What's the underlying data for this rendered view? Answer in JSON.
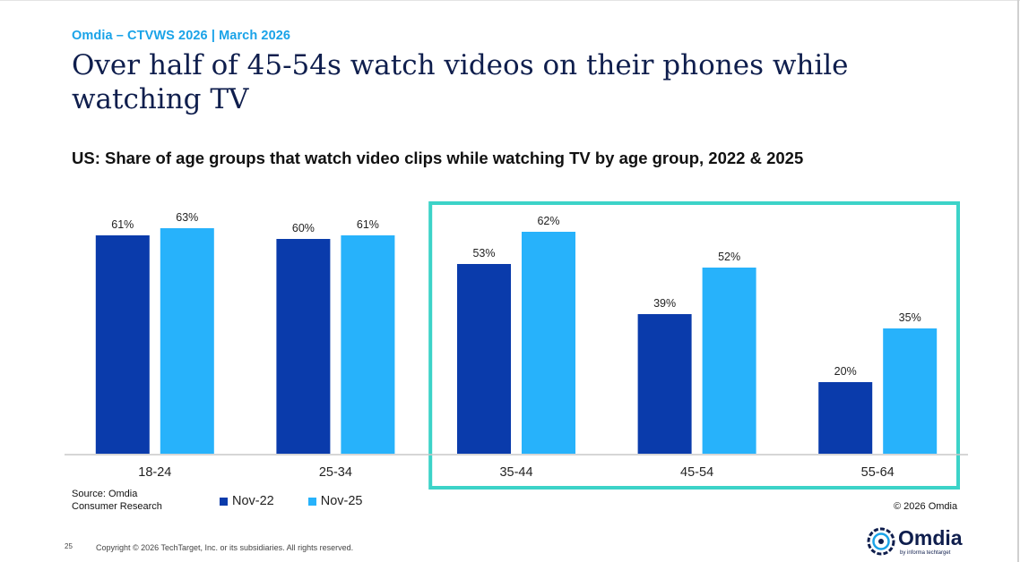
{
  "header": {
    "kicker": "Omdia – CTVWS 2026 | March 2026",
    "title": "Over half of 45-54s watch videos on their phones while watching TV"
  },
  "chart_data": {
    "type": "bar",
    "title": "US: Share of age groups that watch video clips while watching TV by age group, 2022 & 2025",
    "xlabel": "",
    "ylabel": "",
    "categories": [
      "18-24",
      "25-34",
      "35-44",
      "45-54",
      "55-64"
    ],
    "series": [
      {
        "name": "Nov-22",
        "color": "#0a3bab",
        "values": [
          61,
          60,
          53,
          39,
          20
        ],
        "labels": [
          "61%",
          "60%",
          "53%",
          "39%",
          "20%"
        ]
      },
      {
        "name": "Nov-25",
        "color": "#27b2fb",
        "values": [
          63,
          61,
          62,
          52,
          35
        ],
        "labels": [
          "63%",
          "61%",
          "62%",
          "52%",
          "35%"
        ]
      }
    ],
    "ylim": [
      0,
      70
    ],
    "grid": false,
    "legend_position": "bottom-left",
    "highlight": {
      "categories": [
        "35-44",
        "45-54",
        "55-64"
      ],
      "color": "#3cd3c8"
    }
  },
  "footer": {
    "source": "Source: Omdia\nConsumer Research",
    "omdia_copyright": "© 2026 Omdia",
    "page_number": "25",
    "legal": "Copyright © 2026 TechTarget, Inc. or its subsidiaries. All rights reserved.",
    "logo_text": "Omdia",
    "logo_subtext": "by informa techtarget"
  }
}
